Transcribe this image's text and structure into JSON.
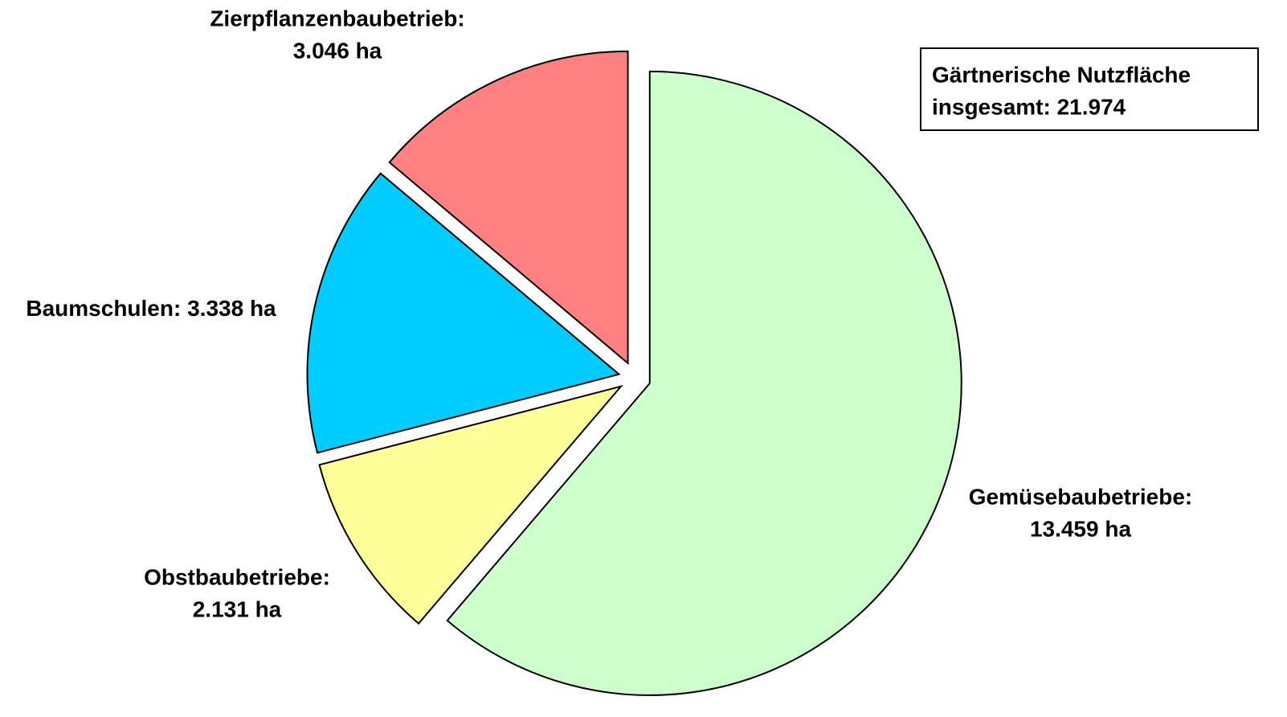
{
  "chart_data": {
    "type": "pie",
    "categories": [
      "Gemüsebaubetriebe:",
      "Obstbaubetriebe:",
      "Baumschulen:",
      "Zierpflanzenbaubetrieb:"
    ],
    "values": [
      13459,
      2131,
      3338,
      3046
    ],
    "value_labels": [
      "13.459 ha",
      "2.131 ha",
      "3.338 ha",
      "3.046 ha"
    ],
    "colors": [
      "#ccffcc",
      "#ffff99",
      "#00ccff",
      "#ff8080"
    ],
    "annotation": [
      "Gärtnerische Nutzfläche",
      "insgesamt: 21.974"
    ]
  }
}
